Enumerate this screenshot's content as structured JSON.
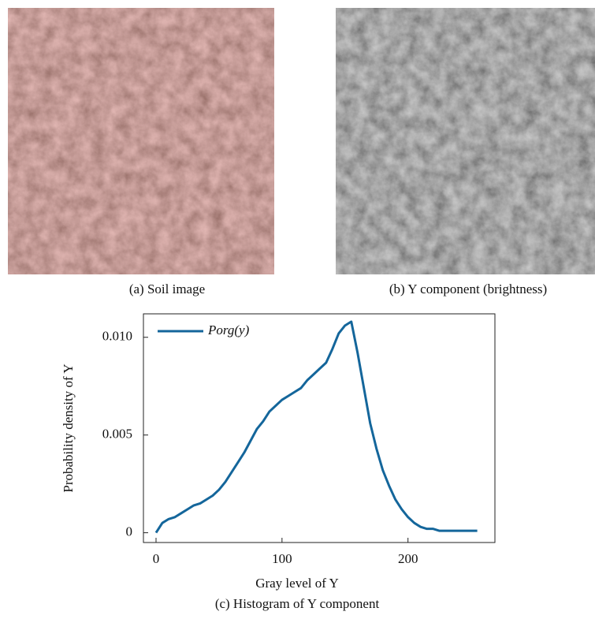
{
  "figure": {
    "panels": [
      {
        "caption": "(a) Soil image"
      },
      {
        "caption": "(b) Y component (brightness)"
      }
    ],
    "chart_caption": "(c) Histogram of Y component"
  },
  "chart_data": {
    "type": "line",
    "xlabel": "Gray level of Y",
    "ylabel": "Probability density of Y",
    "x": [
      0,
      5,
      10,
      15,
      20,
      25,
      30,
      35,
      40,
      45,
      50,
      55,
      60,
      65,
      70,
      75,
      80,
      85,
      90,
      95,
      100,
      105,
      110,
      115,
      120,
      125,
      130,
      135,
      140,
      145,
      150,
      155,
      160,
      165,
      170,
      175,
      180,
      185,
      190,
      195,
      200,
      205,
      210,
      215,
      220,
      225,
      230,
      235,
      240,
      245,
      250,
      255
    ],
    "series": [
      {
        "name": "Porg(y)",
        "color": "#14669b",
        "values": [
          0,
          0.0005,
          0.0007,
          0.0008,
          0.001,
          0.0012,
          0.0014,
          0.0015,
          0.0017,
          0.0019,
          0.0022,
          0.0026,
          0.0031,
          0.0036,
          0.0041,
          0.0047,
          0.0053,
          0.0057,
          0.0062,
          0.0065,
          0.0068,
          0.007,
          0.0072,
          0.0074,
          0.0078,
          0.0081,
          0.0084,
          0.0087,
          0.0094,
          0.0102,
          0.0106,
          0.0108,
          0.0092,
          0.0074,
          0.0056,
          0.0043,
          0.0032,
          0.0024,
          0.0017,
          0.0012,
          0.0008,
          0.0005,
          0.0003,
          0.0002,
          0.0002,
          0.0001,
          0.0001,
          0.0001,
          0.0001,
          0.0001,
          0.0001,
          0.0001
        ]
      }
    ],
    "xlim": [
      -10,
      269
    ],
    "ylim": [
      -0.0005,
      0.0112
    ],
    "xticks": [
      0,
      100,
      200
    ],
    "yticks": [
      0,
      0.005,
      {
        "value": 0.01,
        "label": "0.010"
      }
    ],
    "legend": "upper left"
  }
}
